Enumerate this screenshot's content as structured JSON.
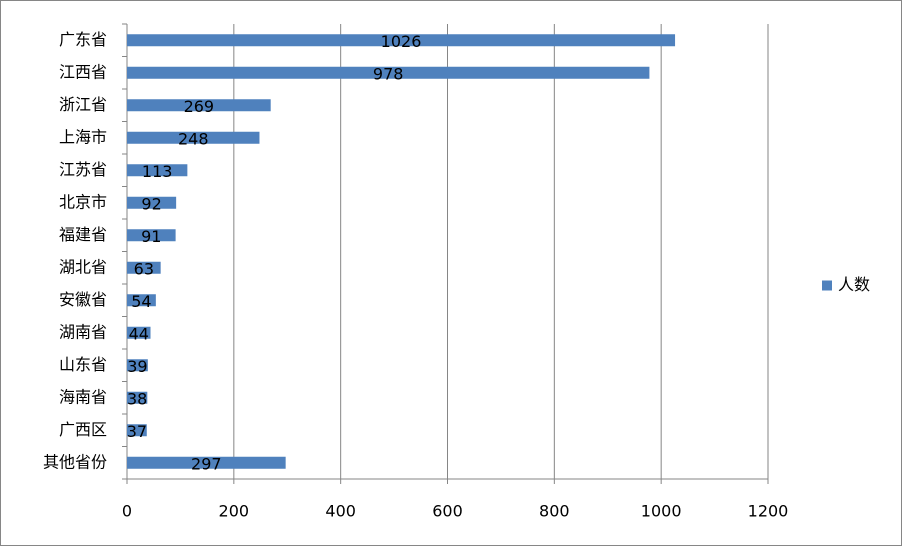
{
  "chart_data": {
    "type": "hbar",
    "categories": [
      "广东省",
      "江西省",
      "浙江省",
      "上海市",
      "江苏省",
      "北京市",
      "福建省",
      "湖北省",
      "安徽省",
      "湖南省",
      "山东省",
      "海南省",
      "广西区",
      "其他省份"
    ],
    "series": [
      {
        "name": "人数",
        "color": "#4f81bd",
        "values": [
          1026,
          978,
          269,
          248,
          113,
          92,
          91,
          63,
          54,
          44,
          39,
          38,
          37,
          297
        ]
      }
    ],
    "xlim": [
      0,
      1200
    ],
    "xticks": [
      0,
      200,
      400,
      600,
      800,
      1000,
      1200
    ],
    "grid": true,
    "legend": "right"
  }
}
